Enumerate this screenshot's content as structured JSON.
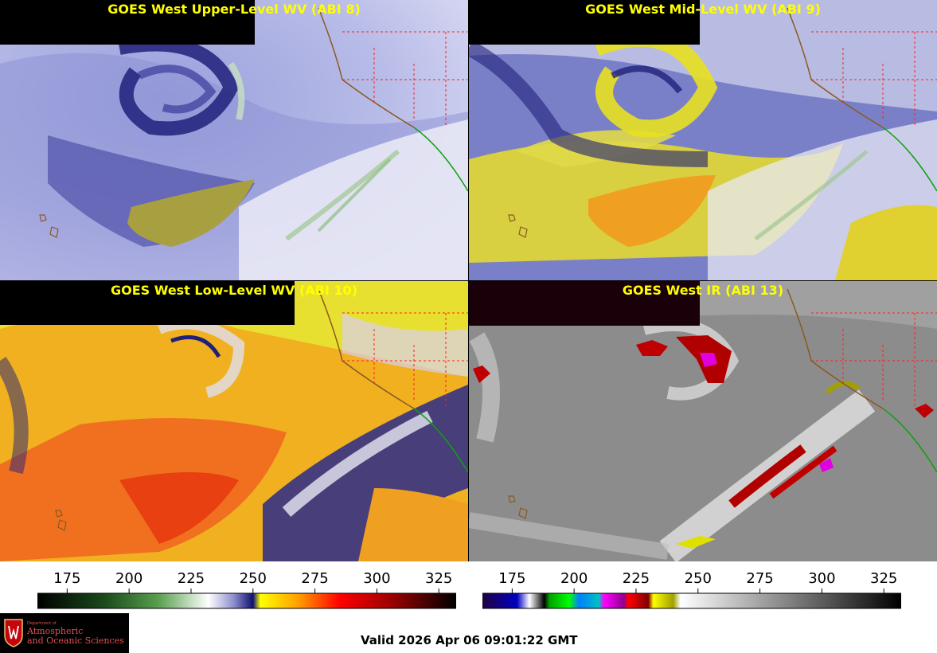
{
  "panels": [
    {
      "id": "p1",
      "title": "GOES West Upper-Level WV (ABI 8)"
    },
    {
      "id": "p2",
      "title": "GOES West Mid-Level WV (ABI 9)"
    },
    {
      "id": "p3",
      "title": "GOES West Low-Level WV (ABI 10)"
    },
    {
      "id": "p4",
      "title": "GOES West IR (ABI 13)"
    }
  ],
  "colorbars": {
    "wv": {
      "ticks": [
        "175",
        "200",
        "225",
        "250",
        "275",
        "300",
        "325"
      ],
      "tick_values": [
        175,
        200,
        225,
        250,
        275,
        300,
        325
      ],
      "range": [
        163,
        332
      ],
      "stops": [
        {
          "v": 163,
          "c": "#000000"
        },
        {
          "v": 190,
          "c": "#1a4a1a"
        },
        {
          "v": 212,
          "c": "#5aa050"
        },
        {
          "v": 232,
          "c": "#ffffff"
        },
        {
          "v": 242,
          "c": "#9090d0"
        },
        {
          "v": 250,
          "c": "#101070"
        },
        {
          "v": 253,
          "c": "#ffff00"
        },
        {
          "v": 268,
          "c": "#ffa000"
        },
        {
          "v": 285,
          "c": "#ff0000"
        },
        {
          "v": 305,
          "c": "#a00000"
        },
        {
          "v": 332,
          "c": "#000000"
        }
      ]
    },
    "ir": {
      "ticks": [
        "175",
        "200",
        "225",
        "250",
        "275",
        "300",
        "325"
      ],
      "tick_values": [
        175,
        200,
        225,
        250,
        275,
        300,
        325
      ],
      "range": [
        163,
        332
      ],
      "stops": [
        {
          "v": 163,
          "c": "#200040"
        },
        {
          "v": 177,
          "c": "#0000c0"
        },
        {
          "v": 182,
          "c": "#ffffff"
        },
        {
          "v": 188,
          "c": "#000000"
        },
        {
          "v": 190,
          "c": "#00a000"
        },
        {
          "v": 198,
          "c": "#00ff00"
        },
        {
          "v": 202,
          "c": "#0080ff"
        },
        {
          "v": 210,
          "c": "#00c0c0"
        },
        {
          "v": 212,
          "c": "#ff00ff"
        },
        {
          "v": 220,
          "c": "#900090"
        },
        {
          "v": 222,
          "c": "#ff0000"
        },
        {
          "v": 230,
          "c": "#800000"
        },
        {
          "v": 232,
          "c": "#ffff00"
        },
        {
          "v": 240,
          "c": "#a0a000"
        },
        {
          "v": 243,
          "c": "#ffffff"
        },
        {
          "v": 332,
          "c": "#000000"
        }
      ]
    }
  },
  "valid_time": "Valid 2026 Apr 06 09:01:22 GMT",
  "logo": {
    "dept_line": "Department of",
    "name_line1": "Atmospheric",
    "name_line2": "and Oceanic Sciences"
  }
}
